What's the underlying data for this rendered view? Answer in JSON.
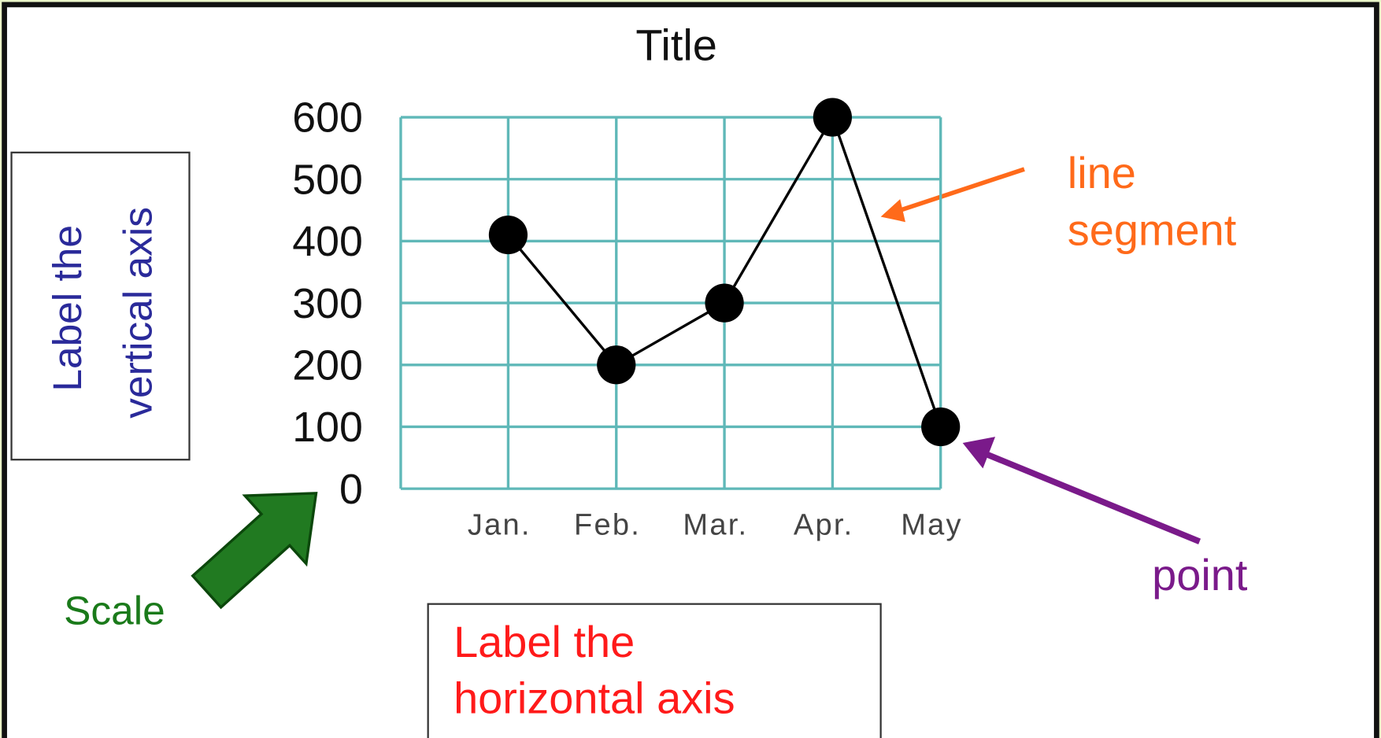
{
  "chart_data": {
    "type": "line",
    "title": "Title",
    "categories": [
      "Jan.",
      "Feb.",
      "Mar.",
      "Apr.",
      "May"
    ],
    "values": [
      410,
      200,
      300,
      600,
      100
    ],
    "color": "#000000",
    "ylim": [
      0,
      600
    ],
    "yticks": [
      0,
      100,
      200,
      300,
      400,
      500,
      600
    ],
    "grid": true,
    "ylabel": [
      "Label the",
      "vertical axis"
    ],
    "xlabel": [
      "Label the",
      "horizontal axis"
    ],
    "annotations": [
      [
        "Scale"
      ],
      [
        "line",
        "segment"
      ],
      [
        "point"
      ]
    ]
  }
}
